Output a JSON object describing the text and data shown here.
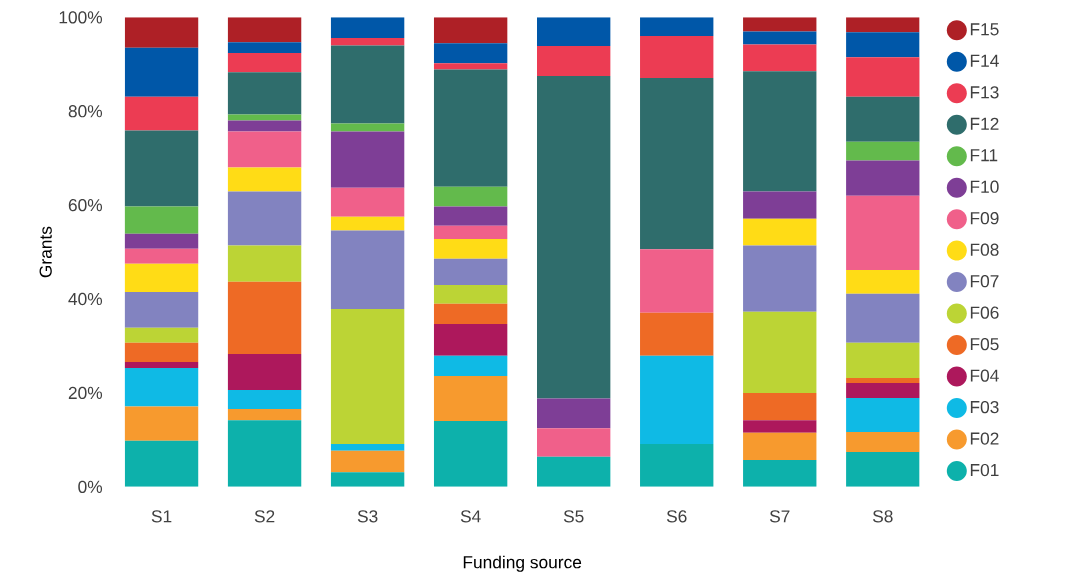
{
  "chart_data": {
    "type": "bar",
    "stacked": true,
    "xlabel": "Funding source",
    "ylabel": "Grants",
    "categories": [
      "S1",
      "S2",
      "S3",
      "S4",
      "S5",
      "S6",
      "S7",
      "S8"
    ],
    "ylim": [
      0,
      100
    ],
    "yticks": [
      {
        "value": 0,
        "label": "0%"
      },
      {
        "value": 20,
        "label": "20%"
      },
      {
        "value": 40,
        "label": "40%"
      },
      {
        "value": 60,
        "label": "60%"
      },
      {
        "value": 80,
        "label": "80%"
      },
      {
        "value": 100,
        "label": "100%"
      }
    ],
    "legend": "right",
    "series": [
      {
        "name": "F01",
        "color": "#0db1ab",
        "values": [
          9.8,
          14.2,
          3.1,
          14.0,
          6.4,
          9.1,
          5.7,
          7.4
        ]
      },
      {
        "name": "F02",
        "color": "#f79a2e",
        "values": [
          7.3,
          2.4,
          4.6,
          9.6,
          0,
          0,
          5.8,
          4.3
        ]
      },
      {
        "name": "F03",
        "color": "#0fbae5",
        "values": [
          8.2,
          4.0,
          1.4,
          4.3,
          0,
          18.8,
          0,
          7.2
        ]
      },
      {
        "name": "F04",
        "color": "#ad185c",
        "values": [
          1.3,
          7.7,
          0,
          6.8,
          0,
          0,
          2.7,
          3.2
        ]
      },
      {
        "name": "F05",
        "color": "#ee6a25",
        "values": [
          4.1,
          15.4,
          0,
          4.3,
          0,
          9.2,
          5.8,
          1.1
        ]
      },
      {
        "name": "F06",
        "color": "#bcd435",
        "values": [
          3.2,
          7.7,
          28.8,
          4.0,
          0,
          0,
          17.3,
          7.5
        ]
      },
      {
        "name": "F07",
        "color": "#8283c0",
        "values": [
          7.6,
          11.5,
          16.7,
          5.6,
          0,
          0,
          14.1,
          10.4
        ]
      },
      {
        "name": "F08",
        "color": "#ffdc16",
        "values": [
          6.0,
          5.1,
          2.9,
          4.2,
          0,
          0,
          5.7,
          5.1
        ]
      },
      {
        "name": "F09",
        "color": "#f0608a",
        "values": [
          3.2,
          7.7,
          6.2,
          2.8,
          6.1,
          13.5,
          0,
          15.8
        ]
      },
      {
        "name": "F10",
        "color": "#7e3e96",
        "values": [
          3.2,
          2.3,
          12.0,
          4.1,
          6.3,
          0,
          5.8,
          7.5
        ]
      },
      {
        "name": "F11",
        "color": "#63ba4c",
        "values": [
          5.8,
          1.3,
          1.7,
          4.2,
          0,
          0,
          0,
          4.0
        ]
      },
      {
        "name": "F12",
        "color": "#2f6d6c",
        "values": [
          16.2,
          9.0,
          16.6,
          25.0,
          68.7,
          36.5,
          25.6,
          9.6
        ]
      },
      {
        "name": "F13",
        "color": "#ec3c53",
        "values": [
          7.2,
          4.1,
          1.6,
          1.3,
          6.4,
          8.9,
          5.7,
          8.4
        ]
      },
      {
        "name": "F14",
        "color": "#0057a8",
        "values": [
          10.4,
          2.3,
          4.4,
          4.3,
          6.1,
          4.0,
          2.8,
          5.3
        ]
      },
      {
        "name": "F15",
        "color": "#ae2026",
        "values": [
          6.5,
          5.3,
          0,
          5.5,
          0,
          0,
          3.0,
          3.2
        ]
      }
    ]
  }
}
